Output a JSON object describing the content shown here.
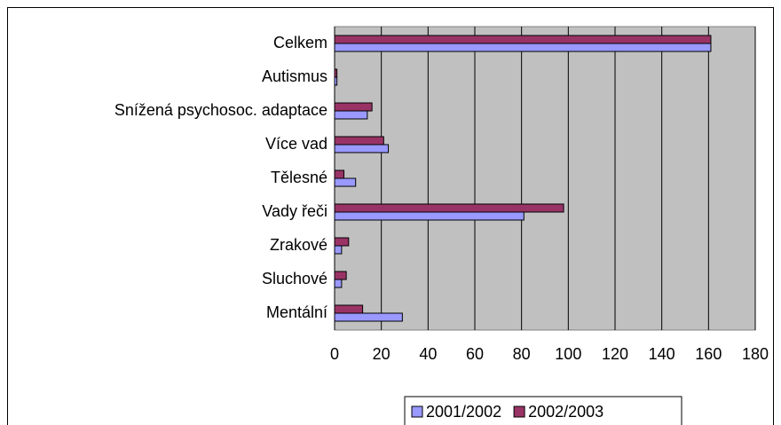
{
  "chart_data": {
    "type": "bar",
    "orientation": "horizontal",
    "categories": [
      "Celkem",
      "Autismus",
      "Snížená psychosoc. adaptace",
      "Více vad",
      "Tělesné",
      "Vady řeči",
      "Zrakové",
      "Sluchové",
      "Mentální"
    ],
    "series": [
      {
        "name": "2001/2002",
        "color": "#9999ff",
        "values": [
          161,
          1,
          14,
          23,
          9,
          81,
          3,
          3,
          29
        ]
      },
      {
        "name": "2002/2003",
        "color": "#993366",
        "values": [
          161,
          1,
          16,
          21,
          4,
          98,
          6,
          5,
          12
        ]
      }
    ],
    "xlim": [
      0,
      180
    ],
    "xticks": [
      0,
      20,
      40,
      60,
      80,
      100,
      120,
      140,
      160,
      180
    ],
    "grid": true,
    "legend": "bottom"
  }
}
